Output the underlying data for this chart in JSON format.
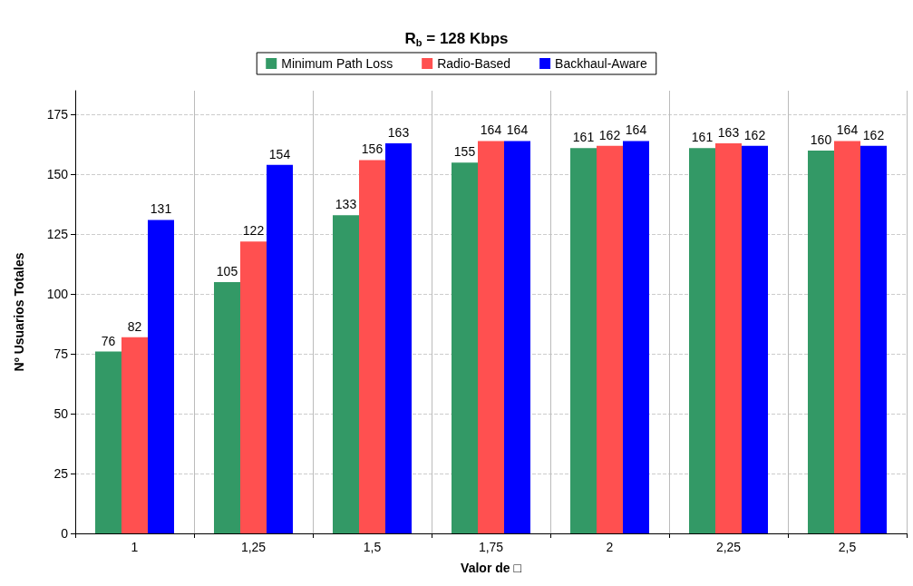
{
  "chart_data": {
    "type": "bar",
    "title": "R$_{b}$ = 128 Kbps",
    "xlabel": "Valor de □",
    "ylabel": "Nº Usuarios Totales",
    "categories": [
      "1",
      "1,25",
      "1,5",
      "1,75",
      "2",
      "2,25",
      "2,5"
    ],
    "series": [
      {
        "name": "Minimum Path Loss",
        "color": "#339966",
        "values": [
          76,
          105,
          133,
          155,
          161,
          161,
          160
        ]
      },
      {
        "name": "Radio-Based",
        "color": "#ff5050",
        "values": [
          82,
          122,
          156,
          164,
          162,
          163,
          164
        ]
      },
      {
        "name": "Backhaul-Aware",
        "color": "#0000ff",
        "values": [
          131,
          154,
          163,
          164,
          164,
          162,
          162
        ]
      }
    ],
    "ylim": [
      0,
      185
    ],
    "yticks": [
      0,
      25,
      50,
      75,
      100,
      125,
      150,
      175
    ],
    "grid": true,
    "legend": "top",
    "data_labels": true
  }
}
